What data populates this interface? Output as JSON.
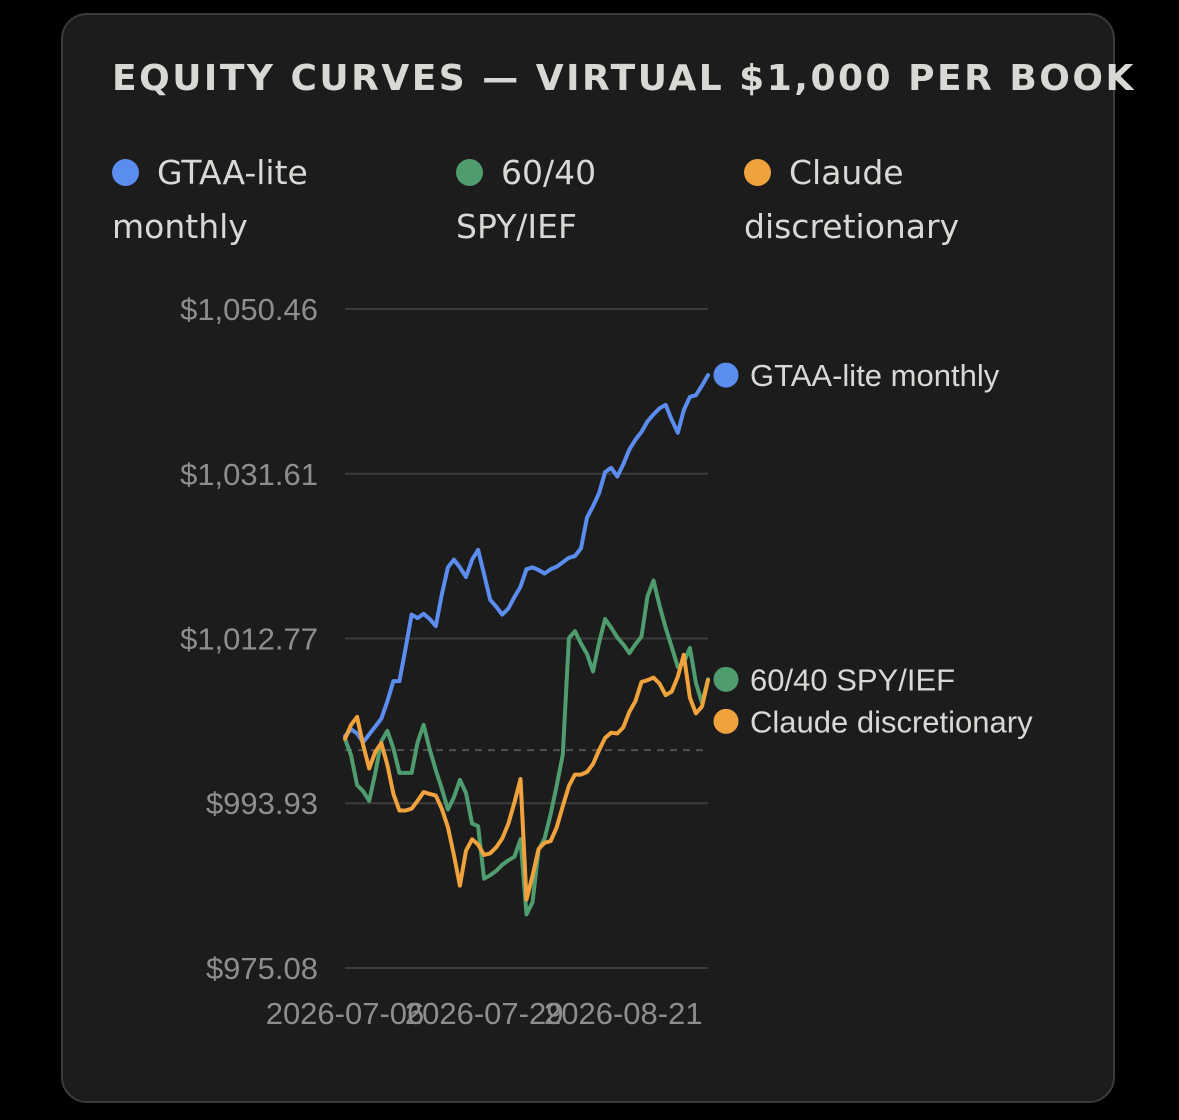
{
  "card": {
    "title": "EQUITY CURVES — VIRTUAL $1,000 PER BOOK"
  },
  "legend": [
    {
      "label": "GTAA-lite monthly",
      "line1": "GTAA-lite",
      "line2": "monthly",
      "color": "#5b8def"
    },
    {
      "label": "60/40 SPY/IEF",
      "line1": "60/40",
      "line2": "SPY/IEF",
      "color": "#4f9d6f"
    },
    {
      "label": "Claude discretionary",
      "line1": "Claude",
      "line2": "discretionary",
      "color": "#f0a33d"
    }
  ],
  "chart_data": {
    "type": "line",
    "title": "EQUITY CURVES — VIRTUAL $1,000 PER BOOK",
    "xlabel": "",
    "ylabel": "",
    "ylim": [
      975.08,
      1050.46
    ],
    "y_ticks": [
      "$1,050.46",
      "$1,031.61",
      "$1,012.77",
      "$993.93",
      "$975.08"
    ],
    "y_tick_values": [
      1050.46,
      1031.61,
      1012.77,
      993.93,
      975.08
    ],
    "x_ticks": [
      "2026-07-06",
      "2026-07-29",
      "2026-08-21"
    ],
    "x_tick_index": [
      0,
      23,
      46
    ],
    "baseline": 1000,
    "grid": true,
    "legend_position": "top",
    "end_labels": true,
    "series": [
      {
        "name": "GTAA-lite monthly",
        "color": "#5b8def",
        "values": [
          1001.6,
          1002.4,
          1001.9,
          1000.9,
          1001.8,
          1002.7,
          1003.6,
          1005.6,
          1007.9,
          1007.9,
          1011.6,
          1015.5,
          1015.1,
          1015.6,
          1015.0,
          1014.2,
          1017.8,
          1020.9,
          1021.8,
          1020.9,
          1019.8,
          1021.8,
          1022.9,
          1020.1,
          1017.2,
          1016.4,
          1015.5,
          1016.2,
          1017.5,
          1018.7,
          1020.7,
          1020.9,
          1020.6,
          1020.2,
          1020.7,
          1021.0,
          1021.5,
          1022.0,
          1022.2,
          1023.1,
          1026.6,
          1027.9,
          1029.4,
          1031.8,
          1032.3,
          1031.3,
          1032.7,
          1034.4,
          1035.5,
          1036.4,
          1037.6,
          1038.4,
          1039.1,
          1039.5,
          1037.8,
          1036.3,
          1038.9,
          1040.4,
          1040.6,
          1041.7,
          1042.9
        ]
      },
      {
        "name": "60/40 SPY/IEF",
        "color": "#4f9d6f",
        "values": [
          1001.3,
          999.4,
          996.0,
          995.3,
          994.2,
          997.4,
          1001.0,
          1002.2,
          1000.2,
          997.4,
          997.4,
          997.4,
          1000.9,
          1002.9,
          1000.1,
          997.7,
          995.6,
          993.2,
          994.6,
          996.6,
          995.1,
          991.6,
          991.3,
          985.3,
          985.7,
          986.2,
          986.9,
          987.4,
          987.8,
          989.8,
          981.2,
          982.6,
          988.6,
          989.9,
          992.7,
          996.0,
          999.5,
          1012.8,
          1013.6,
          1012.2,
          1011.0,
          1009.0,
          1012.3,
          1015.0,
          1014.0,
          1012.9,
          1012.1,
          1011.1,
          1012.1,
          1013.0,
          1017.6,
          1019.4,
          1016.5,
          1014.0,
          1011.8,
          1009.5,
          1010.0,
          1011.7,
          1007.7,
          1005.4,
          1008.1
        ]
      },
      {
        "name": "Claude discretionary",
        "color": "#f0a33d",
        "values": [
          1001.3,
          1002.9,
          1003.8,
          1000.6,
          997.9,
          999.8,
          1000.8,
          998.3,
          995.0,
          993.1,
          993.1,
          993.3,
          994.2,
          995.2,
          995.0,
          994.8,
          993.3,
          991.2,
          988.0,
          984.5,
          988.5,
          989.8,
          989.2,
          988.0,
          988.2,
          988.9,
          989.9,
          991.6,
          994.0,
          996.7,
          982.9,
          985.6,
          988.7,
          989.4,
          989.6,
          991.2,
          993.6,
          995.9,
          997.2,
          997.2,
          997.5,
          998.4,
          1000.0,
          1001.4,
          1002.0,
          1001.9,
          1002.6,
          1004.4,
          1005.6,
          1007.8,
          1008.0,
          1008.3,
          1007.6,
          1006.3,
          1006.7,
          1008.4,
          1010.9,
          1006.0,
          1004.2,
          1005.0,
          1008.0
        ]
      }
    ]
  }
}
